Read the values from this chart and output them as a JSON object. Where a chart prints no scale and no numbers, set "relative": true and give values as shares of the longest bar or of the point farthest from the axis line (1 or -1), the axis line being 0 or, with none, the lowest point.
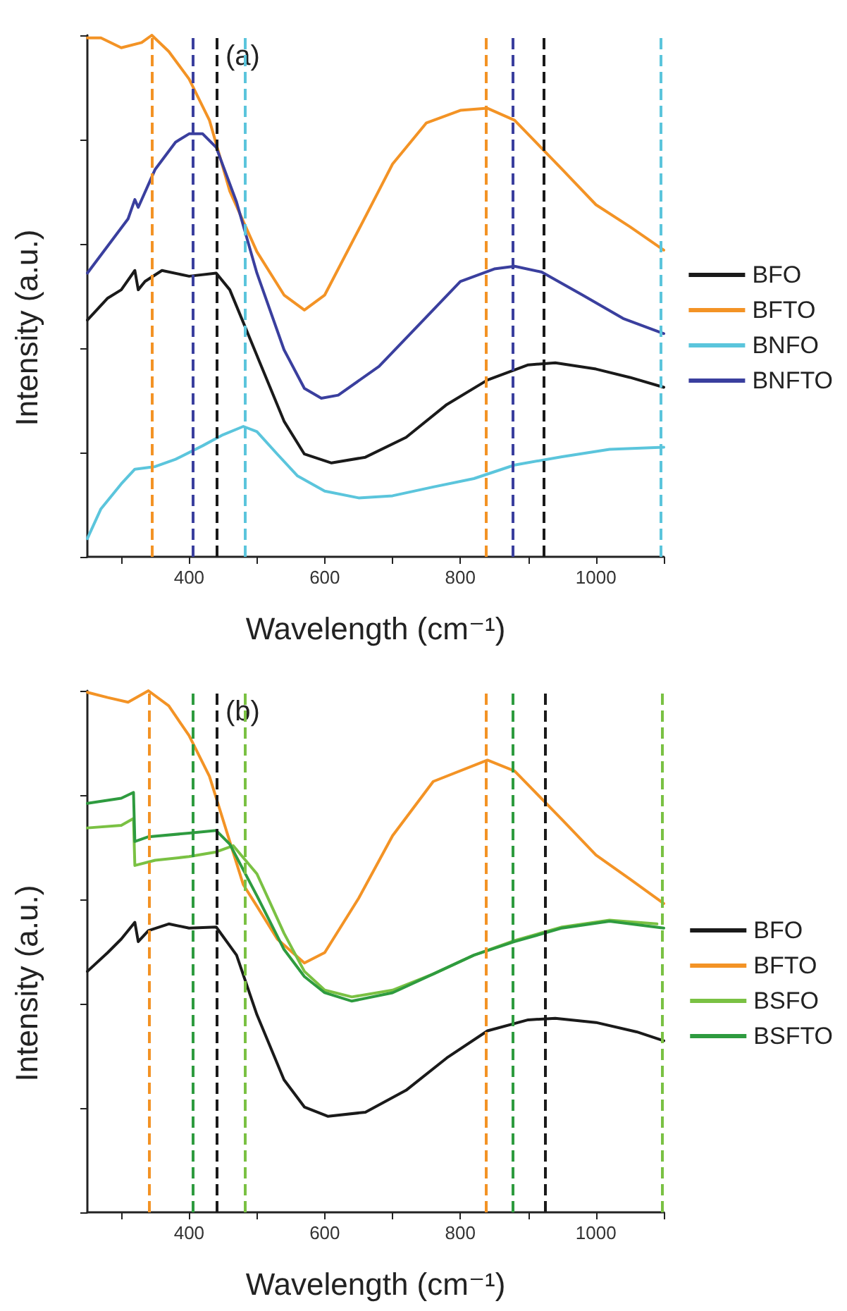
{
  "chart_data": [
    {
      "type": "line",
      "relative": true,
      "xlabel": "Wavelength (cm⁻¹)",
      "ylabel": "Intensity (a.u.)",
      "annotations": [
        "(a)"
      ],
      "xlim": [
        250,
        1100
      ],
      "xticks": [
        {
          "value": 300,
          "label": null
        },
        400,
        {
          "value": 500,
          "label": null
        },
        600,
        {
          "value": 700,
          "label": null
        },
        800,
        {
          "value": 900,
          "label": null
        },
        1000,
        {
          "value": 1100,
          "label": null
        }
      ],
      "legend": "right",
      "grid": false,
      "marker": "none",
      "line_style": "solid",
      "series": [
        {
          "name": "BFO",
          "color": "#1a1a1a",
          "x": [
            250,
            280,
            300,
            320,
            325,
            335,
            360,
            400,
            440,
            460,
            500,
            540,
            570,
            610,
            660,
            720,
            780,
            840,
            900,
            940,
            1000,
            1050,
            1100
          ],
          "values": [
            0.454,
            0.496,
            0.512,
            0.549,
            0.512,
            0.528,
            0.549,
            0.538,
            0.544,
            0.512,
            0.386,
            0.26,
            0.197,
            0.18,
            0.191,
            0.229,
            0.292,
            0.339,
            0.368,
            0.372,
            0.36,
            0.344,
            0.325
          ]
        },
        {
          "name": "BFTO",
          "color": "#f39325",
          "x": [
            250,
            270,
            300,
            330,
            345,
            370,
            400,
            430,
            460,
            500,
            540,
            570,
            600,
            650,
            700,
            750,
            800,
            840,
            880,
            950,
            1000,
            1050,
            1100
          ],
          "values": [
            0.995,
            0.995,
            0.976,
            0.986,
            1.0,
            0.969,
            0.916,
            0.837,
            0.701,
            0.585,
            0.502,
            0.473,
            0.502,
            0.627,
            0.753,
            0.832,
            0.856,
            0.86,
            0.837,
            0.743,
            0.675,
            0.633,
            0.588
          ]
        },
        {
          "name": "BNFO",
          "color": "#5bc5dc",
          "x": [
            250,
            270,
            300,
            320,
            350,
            380,
            420,
            450,
            480,
            500,
            530,
            560,
            600,
            650,
            700,
            760,
            820,
            880,
            950,
            1020,
            1100
          ],
          "values": [
            0.035,
            0.092,
            0.14,
            0.168,
            0.173,
            0.187,
            0.213,
            0.234,
            0.25,
            0.24,
            0.197,
            0.155,
            0.126,
            0.113,
            0.117,
            0.134,
            0.15,
            0.176,
            0.192,
            0.206,
            0.21
          ]
        },
        {
          "name": "BNFTO",
          "color": "#3a3f9e",
          "x": [
            250,
            280,
            310,
            320,
            325,
            350,
            380,
            400,
            420,
            440,
            470,
            500,
            540,
            570,
            595,
            620,
            680,
            750,
            800,
            850,
            880,
            920,
            980,
            1040,
            1100
          ],
          "values": [
            0.544,
            0.596,
            0.648,
            0.685,
            0.67,
            0.743,
            0.795,
            0.811,
            0.811,
            0.785,
            0.68,
            0.544,
            0.397,
            0.323,
            0.304,
            0.31,
            0.365,
            0.46,
            0.528,
            0.552,
            0.557,
            0.546,
            0.502,
            0.457,
            0.428
          ]
        }
      ],
      "ref_lines": [
        {
          "axis": "x",
          "value": 345,
          "color": "#f39325",
          "line_style": "dashed"
        },
        {
          "axis": "x",
          "value": 838,
          "color": "#f39325",
          "line_style": "dashed"
        },
        {
          "axis": "x",
          "value": 405,
          "color": "#3a3f9e",
          "line_style": "dashed"
        },
        {
          "axis": "x",
          "value": 878,
          "color": "#3a3f9e",
          "line_style": "dashed"
        },
        {
          "axis": "x",
          "value": 441,
          "color": "#1a1a1a",
          "line_style": "dashed"
        },
        {
          "axis": "x",
          "value": 922,
          "color": "#1a1a1a",
          "line_style": "dashed"
        },
        {
          "axis": "x",
          "value": 482,
          "color": "#5bc5dc",
          "line_style": "dashed"
        },
        {
          "axis": "x",
          "value": 1095,
          "color": "#5bc5dc",
          "line_style": "dashed"
        }
      ]
    },
    {
      "type": "line",
      "relative": true,
      "xlabel": "Wavelength (cm⁻¹)",
      "ylabel": "Intensity (a.u.)",
      "annotations": [
        "(b)"
      ],
      "xlim": [
        250,
        1100
      ],
      "xticks": [
        {
          "value": 300,
          "label": null
        },
        400,
        {
          "value": 500,
          "label": null
        },
        600,
        {
          "value": 700,
          "label": null
        },
        800,
        {
          "value": 900,
          "label": null
        },
        1000,
        {
          "value": 1100,
          "label": null
        }
      ],
      "legend": "right",
      "grid": false,
      "marker": "none",
      "line_style": "solid",
      "series": [
        {
          "name": "BFO",
          "color": "#1a1a1a",
          "x": [
            250,
            280,
            300,
            320,
            325,
            340,
            370,
            400,
            440,
            470,
            500,
            540,
            570,
            605,
            660,
            720,
            780,
            840,
            900,
            940,
            1000,
            1060,
            1100
          ],
          "values": [
            0.462,
            0.498,
            0.524,
            0.556,
            0.519,
            0.54,
            0.553,
            0.545,
            0.547,
            0.493,
            0.379,
            0.254,
            0.202,
            0.184,
            0.192,
            0.234,
            0.296,
            0.348,
            0.369,
            0.372,
            0.364,
            0.346,
            0.329
          ]
        },
        {
          "name": "BFTO",
          "color": "#f39325",
          "x": [
            250,
            280,
            310,
            340,
            370,
            400,
            430,
            460,
            480,
            500,
            530,
            570,
            600,
            650,
            700,
            760,
            840,
            880,
            950,
            1000,
            1050,
            1100
          ],
          "values": [
            0.997,
            0.987,
            0.978,
            1.0,
            0.971,
            0.914,
            0.836,
            0.711,
            0.628,
            0.587,
            0.524,
            0.478,
            0.498,
            0.602,
            0.722,
            0.826,
            0.867,
            0.846,
            0.753,
            0.685,
            0.639,
            0.592
          ]
        },
        {
          "name": "BSFO",
          "color": "#7ac143",
          "x": [
            250,
            300,
            318,
            320,
            350,
            400,
            440,
            465,
            500,
            540,
            570,
            600,
            640,
            700,
            760,
            820,
            880,
            950,
            1020,
            1090
          ],
          "values": [
            0.737,
            0.742,
            0.755,
            0.665,
            0.675,
            0.682,
            0.691,
            0.703,
            0.649,
            0.535,
            0.462,
            0.426,
            0.413,
            0.426,
            0.457,
            0.493,
            0.521,
            0.547,
            0.56,
            0.553
          ]
        },
        {
          "name": "BSFTO",
          "color": "#2e9b3f",
          "x": [
            250,
            300,
            318,
            320,
            340,
            400,
            440,
            460,
            500,
            540,
            570,
            600,
            640,
            700,
            760,
            820,
            880,
            950,
            1020,
            1100
          ],
          "values": [
            0.784,
            0.794,
            0.805,
            0.711,
            0.72,
            0.727,
            0.732,
            0.706,
            0.607,
            0.504,
            0.452,
            0.421,
            0.405,
            0.421,
            0.457,
            0.493,
            0.519,
            0.545,
            0.558,
            0.545
          ]
        }
      ],
      "ref_lines": [
        {
          "axis": "x",
          "value": 340,
          "color": "#f39325",
          "line_style": "dashed"
        },
        {
          "axis": "x",
          "value": 838,
          "color": "#f39325",
          "line_style": "dashed"
        },
        {
          "axis": "x",
          "value": 405,
          "color": "#2e9b3f",
          "line_style": "dashed"
        },
        {
          "axis": "x",
          "value": 878,
          "color": "#2e9b3f",
          "line_style": "dashed"
        },
        {
          "axis": "x",
          "value": 440,
          "color": "#1a1a1a",
          "line_style": "dashed"
        },
        {
          "axis": "x",
          "value": 925,
          "color": "#1a1a1a",
          "line_style": "dashed"
        },
        {
          "axis": "x",
          "value": 483,
          "color": "#7ac143",
          "line_style": "dashed"
        },
        {
          "axis": "x",
          "value": 1097,
          "color": "#7ac143",
          "line_style": "dashed"
        }
      ]
    }
  ]
}
